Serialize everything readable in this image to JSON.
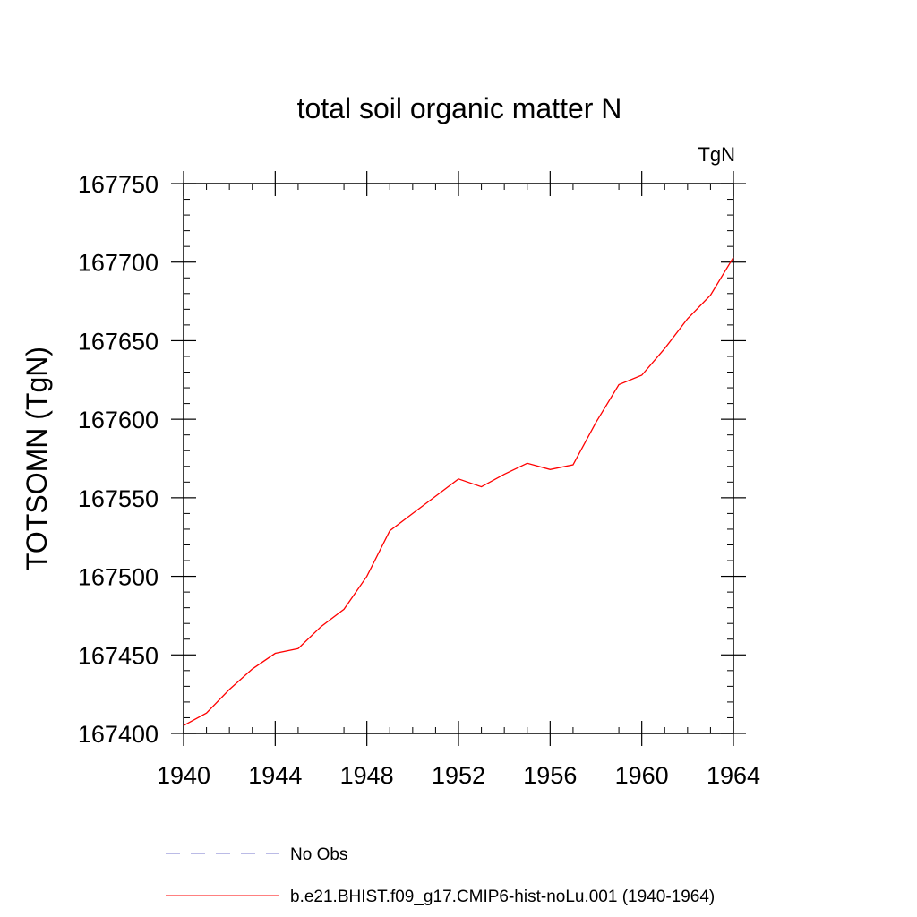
{
  "chart_data": {
    "type": "line",
    "title": "total soil organic matter N",
    "units_label": "TgN",
    "ylabel": "TOTSOMN  (TgN)",
    "xlabel": "",
    "xlim": [
      1940,
      1964
    ],
    "ylim": [
      167400,
      167750
    ],
    "x_ticks": [
      1940,
      1944,
      1948,
      1952,
      1956,
      1960,
      1964
    ],
    "y_ticks": [
      167400,
      167450,
      167500,
      167550,
      167600,
      167650,
      167700,
      167750
    ],
    "grid": false,
    "legend_position": "bottom",
    "legend": [
      {
        "label": "No Obs",
        "color": "#7777cc",
        "style": "dashed"
      },
      {
        "label": "b.e21.BHIST.f09_g17.CMIP6-hist-noLu.001 (1940-1964)",
        "color": "#ff0000",
        "style": "solid"
      }
    ],
    "series": [
      {
        "name": "b.e21.BHIST.f09_g17.CMIP6-hist-noLu.001 (1940-1964)",
        "color": "#ff0000",
        "x": [
          1940,
          1941,
          1942,
          1943,
          1944,
          1945,
          1946,
          1947,
          1948,
          1949,
          1950,
          1951,
          1952,
          1953,
          1954,
          1955,
          1956,
          1957,
          1958,
          1959,
          1960,
          1961,
          1962,
          1963,
          1964
        ],
        "values": [
          167405,
          167413,
          167428,
          167441,
          167451,
          167454,
          167468,
          167479,
          167500,
          167529,
          167540,
          167551,
          167562,
          167557,
          167565,
          167572,
          167568,
          167571,
          167598,
          167622,
          167628,
          167645,
          167664,
          167679,
          167703
        ]
      }
    ]
  }
}
